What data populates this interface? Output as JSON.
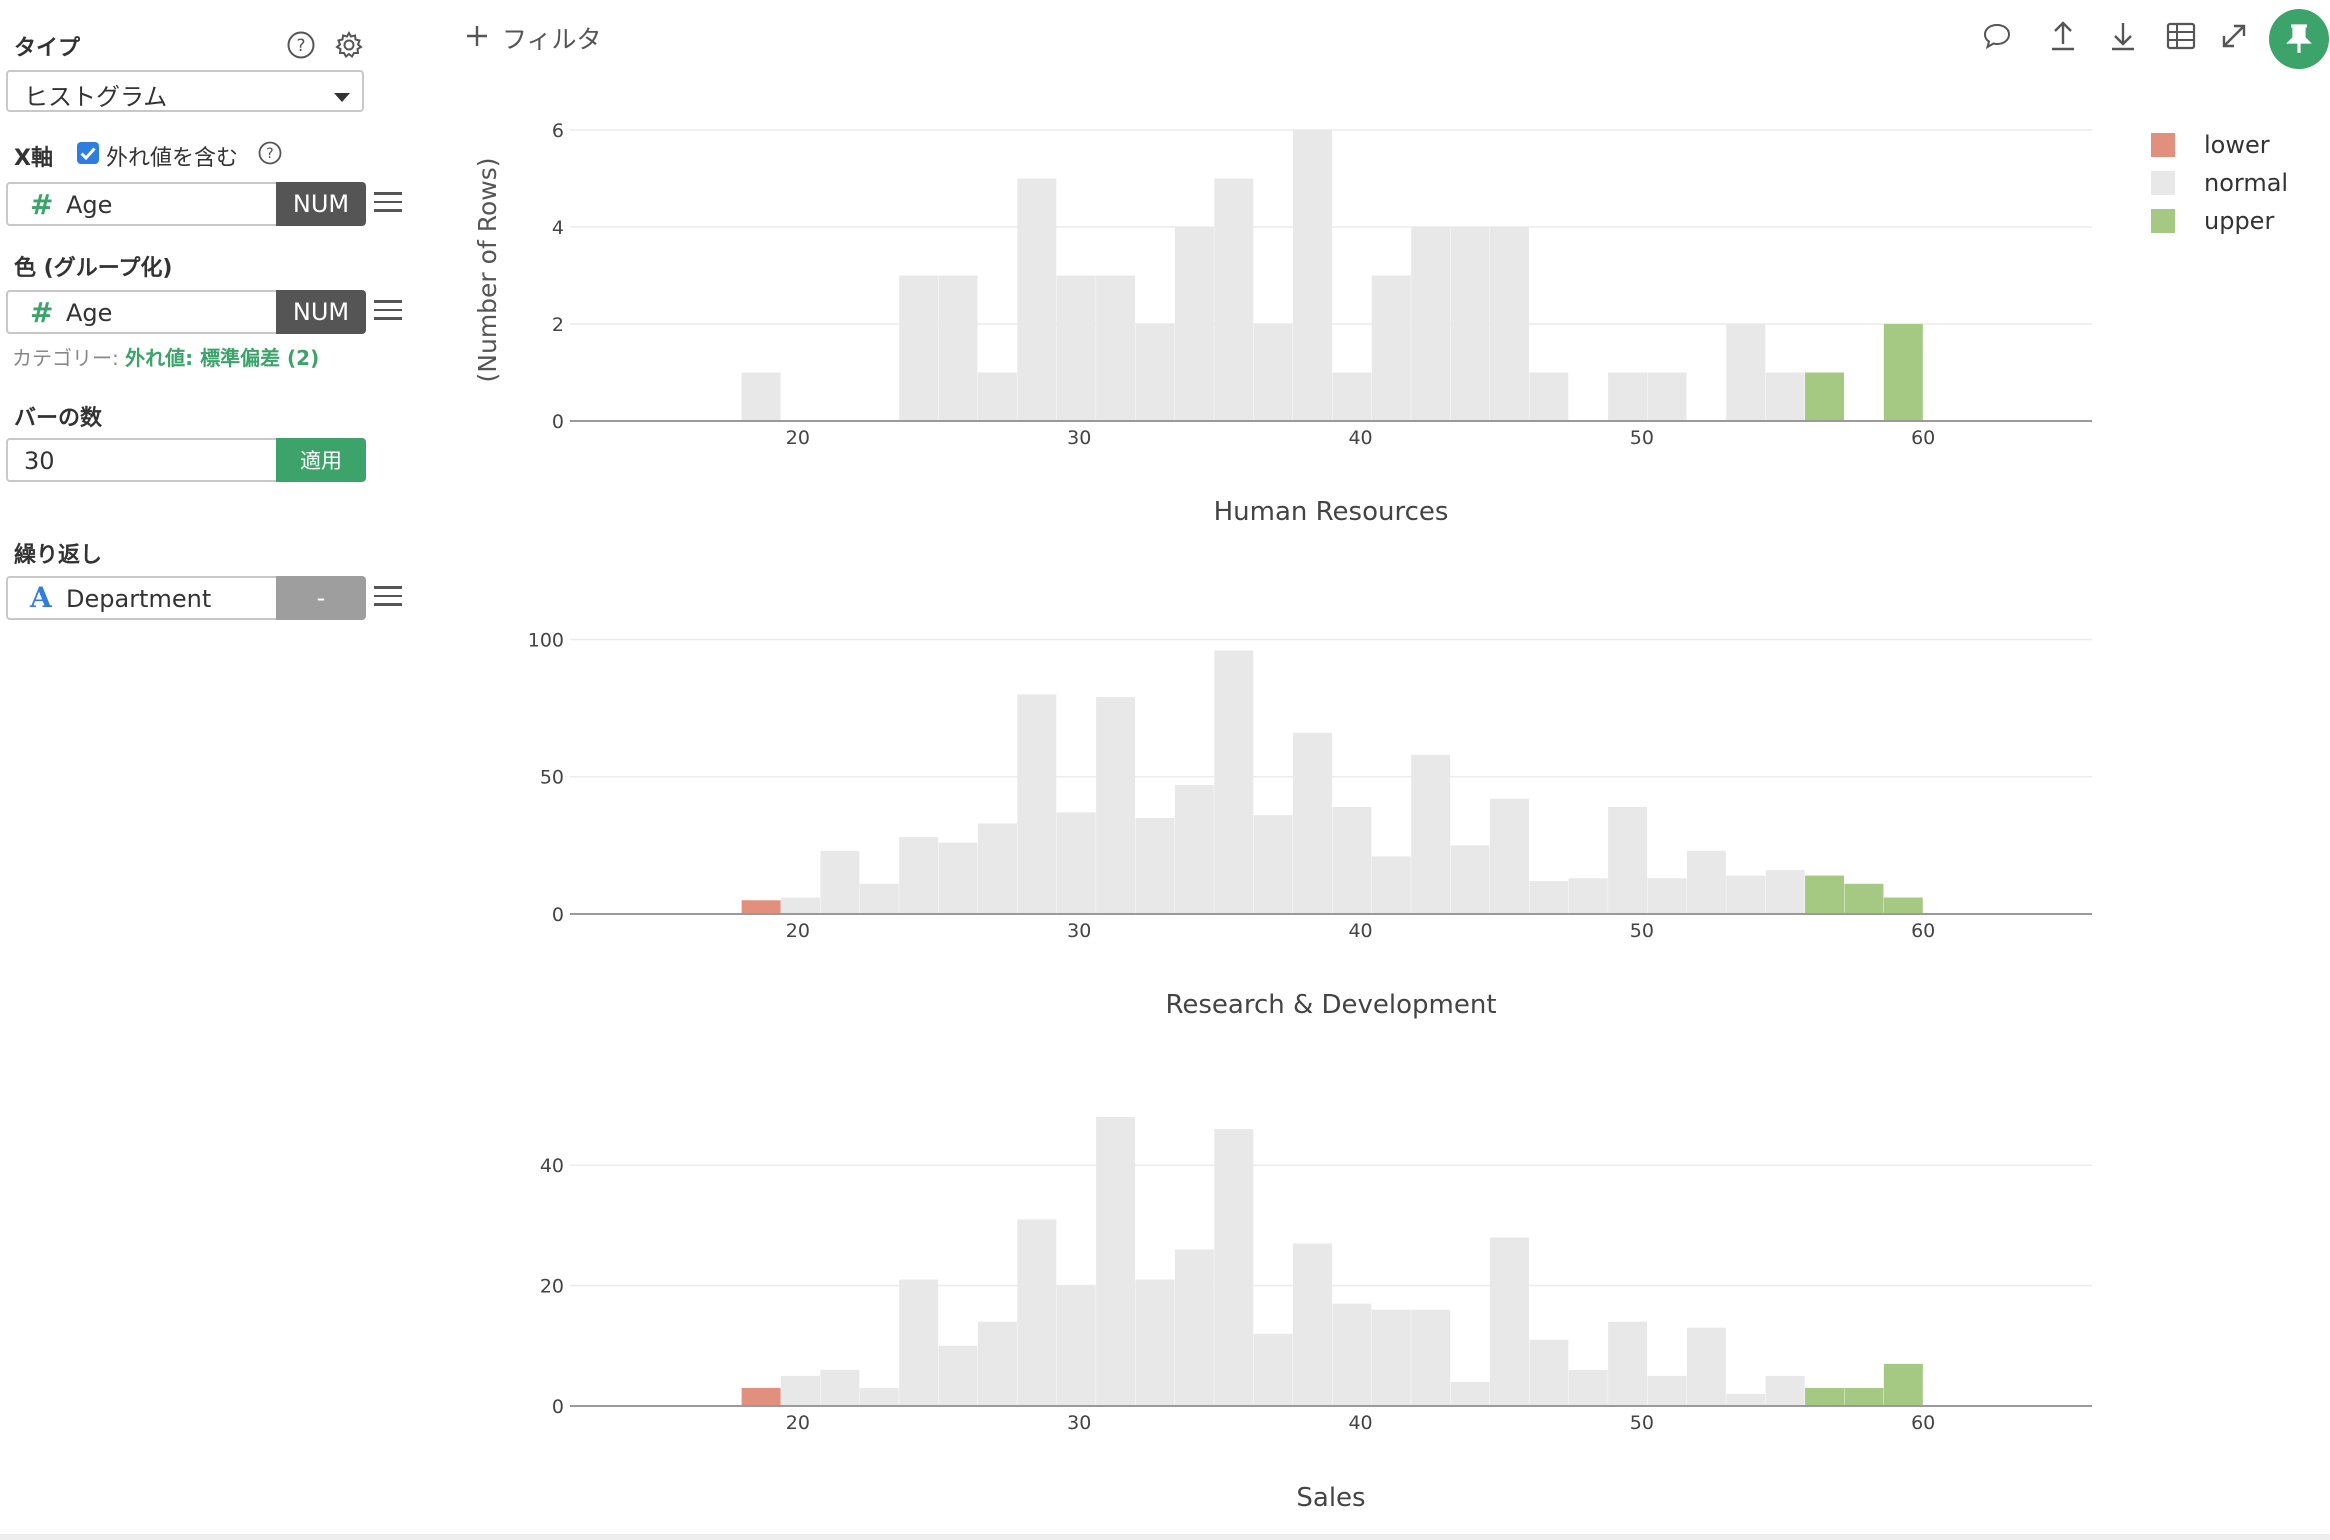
{
  "sidebar": {
    "type_label": "タイプ",
    "type_value": "ヒストグラム",
    "xaxis_label": "X軸",
    "outlier_checkbox_label": "外れ値を含む",
    "xaxis_field": "Age",
    "xaxis_type": "NUM",
    "color_label": "色 (グループ化)",
    "color_field": "Age",
    "color_type": "NUM",
    "category_prefix": "カテゴリー:",
    "category_value": "外れ値: 標準偏差 (2)",
    "bins_label": "バーの数",
    "bins_value": "30",
    "apply_label": "適用",
    "repeat_label": "繰り返し",
    "repeat_field": "Department",
    "repeat_type": "-"
  },
  "toolbar": {
    "filter_label": "フィルタ",
    "icons": [
      "comment-icon",
      "upload-icon",
      "download-icon",
      "table-icon",
      "expand-icon",
      "pin-icon"
    ]
  },
  "colors": {
    "lower": "#e0907c",
    "normal": "#e8e8e8",
    "upper": "#a5c882",
    "accent": "#3ca36b",
    "tag_dark": "#555555",
    "tag_gray": "#9e9e9e"
  },
  "chart_data": {
    "type": "bar",
    "ylabel": "(Number of Rows)",
    "xlabel": "",
    "legend": {
      "placement": "top-right",
      "entries": [
        "lower",
        "normal",
        "upper"
      ]
    },
    "x_ticks": [
      20,
      30,
      40,
      50,
      60
    ],
    "bin_width": 1.4,
    "bin_start": 18,
    "panels": [
      {
        "title": "Human Resources",
        "ylim": [
          0,
          6
        ],
        "y_ticks": [
          0,
          2,
          4,
          6
        ],
        "bins": [
          {
            "x": 18.0,
            "v": 1,
            "g": "normal"
          },
          {
            "x": 23.6,
            "v": 3,
            "g": "normal"
          },
          {
            "x": 25.0,
            "v": 3,
            "g": "normal"
          },
          {
            "x": 26.4,
            "v": 1,
            "g": "normal"
          },
          {
            "x": 27.8,
            "v": 5,
            "g": "normal"
          },
          {
            "x": 29.2,
            "v": 3,
            "g": "normal"
          },
          {
            "x": 30.6,
            "v": 3,
            "g": "normal"
          },
          {
            "x": 32.0,
            "v": 2,
            "g": "normal"
          },
          {
            "x": 33.4,
            "v": 4,
            "g": "normal"
          },
          {
            "x": 34.8,
            "v": 5,
            "g": "normal"
          },
          {
            "x": 36.2,
            "v": 2,
            "g": "normal"
          },
          {
            "x": 37.6,
            "v": 6,
            "g": "normal"
          },
          {
            "x": 39.0,
            "v": 1,
            "g": "normal"
          },
          {
            "x": 40.4,
            "v": 3,
            "g": "normal"
          },
          {
            "x": 41.8,
            "v": 4,
            "g": "normal"
          },
          {
            "x": 43.2,
            "v": 4,
            "g": "normal"
          },
          {
            "x": 44.6,
            "v": 4,
            "g": "normal"
          },
          {
            "x": 46.0,
            "v": 1,
            "g": "normal"
          },
          {
            "x": 48.8,
            "v": 1,
            "g": "normal"
          },
          {
            "x": 50.2,
            "v": 1,
            "g": "normal"
          },
          {
            "x": 53.0,
            "v": 2,
            "g": "normal"
          },
          {
            "x": 54.4,
            "v": 1,
            "g": "normal"
          },
          {
            "x": 55.8,
            "v": 1,
            "g": "upper"
          },
          {
            "x": 58.6,
            "v": 2,
            "g": "upper"
          }
        ]
      },
      {
        "title": "Research & Development",
        "ylim": [
          0,
          110
        ],
        "y_ticks": [
          0,
          50,
          100
        ],
        "bins": [
          {
            "x": 18.0,
            "v": 5,
            "g": "lower"
          },
          {
            "x": 19.4,
            "v": 6,
            "g": "normal"
          },
          {
            "x": 20.8,
            "v": 23,
            "g": "normal"
          },
          {
            "x": 22.2,
            "v": 11,
            "g": "normal"
          },
          {
            "x": 23.6,
            "v": 28,
            "g": "normal"
          },
          {
            "x": 25.0,
            "v": 26,
            "g": "normal"
          },
          {
            "x": 26.4,
            "v": 33,
            "g": "normal"
          },
          {
            "x": 27.8,
            "v": 80,
            "g": "normal"
          },
          {
            "x": 29.2,
            "v": 37,
            "g": "normal"
          },
          {
            "x": 30.6,
            "v": 79,
            "g": "normal"
          },
          {
            "x": 32.0,
            "v": 35,
            "g": "normal"
          },
          {
            "x": 33.4,
            "v": 47,
            "g": "normal"
          },
          {
            "x": 34.8,
            "v": 96,
            "g": "normal"
          },
          {
            "x": 36.2,
            "v": 36,
            "g": "normal"
          },
          {
            "x": 37.6,
            "v": 66,
            "g": "normal"
          },
          {
            "x": 39.0,
            "v": 39,
            "g": "normal"
          },
          {
            "x": 40.4,
            "v": 21,
            "g": "normal"
          },
          {
            "x": 41.8,
            "v": 58,
            "g": "normal"
          },
          {
            "x": 43.2,
            "v": 25,
            "g": "normal"
          },
          {
            "x": 44.6,
            "v": 42,
            "g": "normal"
          },
          {
            "x": 46.0,
            "v": 12,
            "g": "normal"
          },
          {
            "x": 47.4,
            "v": 13,
            "g": "normal"
          },
          {
            "x": 48.8,
            "v": 39,
            "g": "normal"
          },
          {
            "x": 50.2,
            "v": 13,
            "g": "normal"
          },
          {
            "x": 51.6,
            "v": 23,
            "g": "normal"
          },
          {
            "x": 53.0,
            "v": 14,
            "g": "normal"
          },
          {
            "x": 54.4,
            "v": 16,
            "g": "normal"
          },
          {
            "x": 55.8,
            "v": 14,
            "g": "upper"
          },
          {
            "x": 57.2,
            "v": 11,
            "g": "upper"
          },
          {
            "x": 58.6,
            "v": 6,
            "g": "upper"
          }
        ]
      },
      {
        "title": "Sales",
        "ylim": [
          0,
          50
        ],
        "y_ticks": [
          0,
          20,
          40
        ],
        "bins": [
          {
            "x": 18.0,
            "v": 3,
            "g": "lower"
          },
          {
            "x": 19.4,
            "v": 5,
            "g": "normal"
          },
          {
            "x": 20.8,
            "v": 6,
            "g": "normal"
          },
          {
            "x": 22.2,
            "v": 3,
            "g": "normal"
          },
          {
            "x": 23.6,
            "v": 21,
            "g": "normal"
          },
          {
            "x": 25.0,
            "v": 10,
            "g": "normal"
          },
          {
            "x": 26.4,
            "v": 14,
            "g": "normal"
          },
          {
            "x": 27.8,
            "v": 31,
            "g": "normal"
          },
          {
            "x": 29.2,
            "v": 20,
            "g": "normal"
          },
          {
            "x": 30.6,
            "v": 48,
            "g": "normal"
          },
          {
            "x": 32.0,
            "v": 21,
            "g": "normal"
          },
          {
            "x": 33.4,
            "v": 26,
            "g": "normal"
          },
          {
            "x": 34.8,
            "v": 46,
            "g": "normal"
          },
          {
            "x": 36.2,
            "v": 12,
            "g": "normal"
          },
          {
            "x": 37.6,
            "v": 27,
            "g": "normal"
          },
          {
            "x": 39.0,
            "v": 17,
            "g": "normal"
          },
          {
            "x": 40.4,
            "v": 16,
            "g": "normal"
          },
          {
            "x": 41.8,
            "v": 16,
            "g": "normal"
          },
          {
            "x": 43.2,
            "v": 4,
            "g": "normal"
          },
          {
            "x": 44.6,
            "v": 28,
            "g": "normal"
          },
          {
            "x": 46.0,
            "v": 11,
            "g": "normal"
          },
          {
            "x": 47.4,
            "v": 6,
            "g": "normal"
          },
          {
            "x": 48.8,
            "v": 14,
            "g": "normal"
          },
          {
            "x": 50.2,
            "v": 5,
            "g": "normal"
          },
          {
            "x": 51.6,
            "v": 13,
            "g": "normal"
          },
          {
            "x": 53.0,
            "v": 2,
            "g": "normal"
          },
          {
            "x": 54.4,
            "v": 5,
            "g": "normal"
          },
          {
            "x": 55.8,
            "v": 3,
            "g": "upper"
          },
          {
            "x": 57.2,
            "v": 3,
            "g": "upper"
          },
          {
            "x": 58.6,
            "v": 7,
            "g": "upper"
          }
        ]
      }
    ]
  }
}
